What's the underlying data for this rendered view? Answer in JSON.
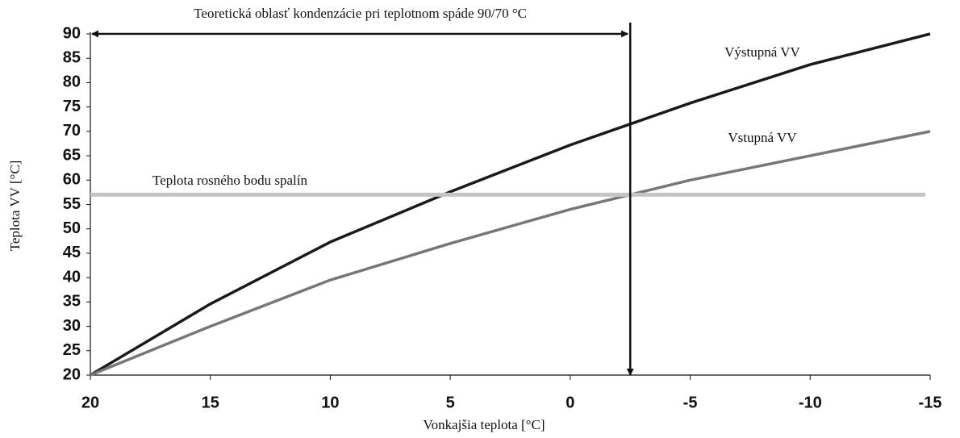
{
  "chart_data": {
    "type": "line",
    "xlabel": "Vonkajšia teplota [°C]",
    "ylabel": "Teplota VV [°C]",
    "xlim": [
      20,
      -15
    ],
    "ylim": [
      20,
      90
    ],
    "xticks": [
      20,
      15,
      10,
      5,
      0,
      -5,
      -10,
      -15
    ],
    "yticks": [
      20,
      25,
      30,
      35,
      40,
      45,
      50,
      55,
      60,
      65,
      70,
      75,
      80,
      85,
      90
    ],
    "series": [
      {
        "name": "Výstupná VV",
        "color": "#1a1a1a",
        "x": [
          20,
          15,
          10,
          5,
          0,
          -5,
          -10,
          -15
        ],
        "values": [
          20,
          34.6,
          47.3,
          57.6,
          67.2,
          75.8,
          83.7,
          90
        ]
      },
      {
        "name": "Vstupná VV",
        "color": "#777777",
        "x": [
          20,
          15,
          10,
          5,
          0,
          -5,
          -10,
          -15
        ],
        "values": [
          20,
          30,
          39.5,
          47,
          54,
          60,
          65,
          70
        ]
      },
      {
        "name": "Teplota rosného bodu spalín",
        "color": "#c4c4c4",
        "x": [
          20,
          -14.8
        ],
        "values": [
          57,
          57
        ]
      }
    ],
    "annotations": [
      {
        "text": "Teoretická oblasť kondenzácie pri teplotnom spáde 90/70 °C",
        "x": -2.5
      }
    ]
  }
}
